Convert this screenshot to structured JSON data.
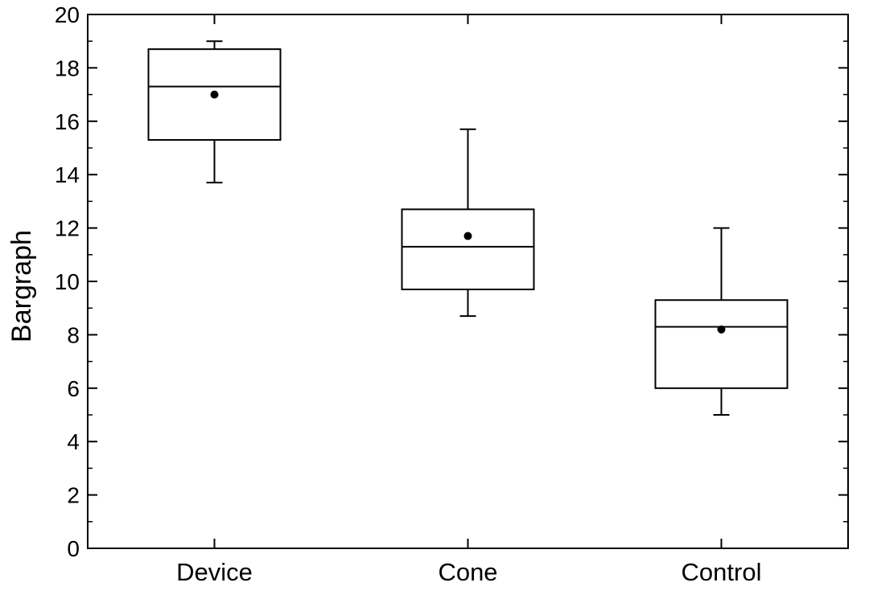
{
  "chart_data": {
    "type": "box",
    "ylabel": "Bargraph",
    "xlabel": "",
    "ylim": [
      0,
      20
    ],
    "yticks": [
      "0",
      "2",
      "4",
      "6",
      "8",
      "10",
      "12",
      "14",
      "16",
      "18",
      "20"
    ],
    "y_minor_step": 1,
    "grid": false,
    "categories": [
      "Device",
      "Cone",
      "Control"
    ],
    "boxes": [
      {
        "category": "Device",
        "whisker_low": 13.7,
        "q1": 15.3,
        "median": 17.3,
        "q3": 18.7,
        "whisker_high": 19.0,
        "mean": 17.0
      },
      {
        "category": "Cone",
        "whisker_low": 8.7,
        "q1": 9.7,
        "median": 11.3,
        "q3": 12.7,
        "whisker_high": 15.7,
        "mean": 11.7
      },
      {
        "category": "Control",
        "whisker_low": 5.0,
        "q1": 6.0,
        "median": 8.3,
        "q3": 9.3,
        "whisker_high": 12.0,
        "mean": 8.2
      }
    ],
    "colors": {
      "line": "#000000",
      "background": "#ffffff"
    }
  }
}
